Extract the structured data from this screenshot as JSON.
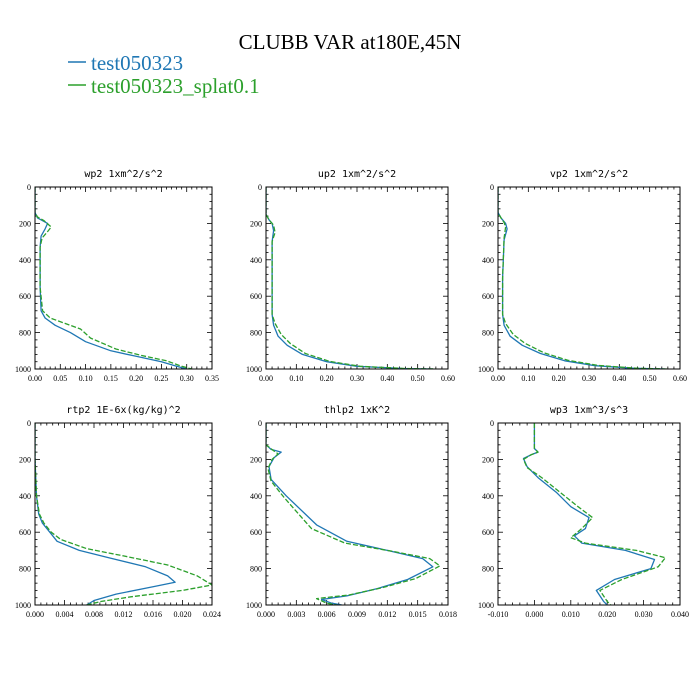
{
  "figure": {
    "title": "CLUBB VAR at180E,45N",
    "legend": [
      {
        "label": "test050323",
        "color": "#1f77b4",
        "dash": false
      },
      {
        "label": "test050323_splat0.1",
        "color": "#2ca02c",
        "dash": true
      }
    ]
  },
  "chart_data": [
    {
      "type": "line",
      "title": "wp2   1xm^2/s^2",
      "xlim": [
        0,
        0.35
      ],
      "ylim": [
        0,
        1000
      ],
      "xticks": [
        "0.00",
        "0.05",
        "0.10",
        "0.15",
        "0.20",
        "0.25",
        "0.30",
        "0.35"
      ],
      "yticks": [
        "0",
        "200",
        "400",
        "600",
        "800",
        "1000"
      ],
      "series": [
        {
          "name": "test050323",
          "color": "#1f77b4",
          "x": [
            0.0,
            0.0,
            0.005,
            0.015,
            0.025,
            0.02,
            0.012,
            0.01,
            0.01,
            0.01,
            0.012,
            0.02,
            0.04,
            0.07,
            0.1,
            0.15,
            0.2,
            0.25,
            0.28,
            0.3
          ],
          "y": [
            0,
            140,
            170,
            185,
            200,
            230,
            270,
            330,
            400,
            550,
            680,
            720,
            760,
            800,
            850,
            900,
            930,
            960,
            985,
            1000
          ]
        },
        {
          "name": "test050323_splat0.1",
          "color": "#2ca02c",
          "x": [
            0.0,
            0.0,
            0.005,
            0.018,
            0.032,
            0.025,
            0.014,
            0.01,
            0.01,
            0.01,
            0.015,
            0.03,
            0.06,
            0.09,
            0.11,
            0.16,
            0.21,
            0.26,
            0.29,
            0.31
          ],
          "y": [
            0,
            140,
            165,
            185,
            220,
            245,
            280,
            330,
            400,
            550,
            680,
            720,
            750,
            780,
            830,
            890,
            925,
            955,
            985,
            1000
          ]
        }
      ]
    },
    {
      "type": "line",
      "title": "up2   1xm^2/s^2",
      "xlim": [
        0,
        0.6
      ],
      "ylim": [
        0,
        1000
      ],
      "xticks": [
        "0.00",
        "0.10",
        "0.20",
        "0.30",
        "0.40",
        "0.50",
        "0.60"
      ],
      "yticks": [
        "0",
        "200",
        "400",
        "600",
        "800",
        "1000"
      ],
      "series": [
        {
          "name": "test050323",
          "color": "#1f77b4",
          "x": [
            0.0,
            0.0,
            0.01,
            0.02,
            0.025,
            0.02,
            0.02,
            0.02,
            0.025,
            0.04,
            0.07,
            0.12,
            0.2,
            0.3,
            0.45,
            0.55
          ],
          "y": [
            0,
            150,
            180,
            200,
            240,
            300,
            500,
            700,
            760,
            820,
            870,
            920,
            960,
            985,
            997,
            1000
          ]
        },
        {
          "name": "test050323_splat0.1",
          "color": "#2ca02c",
          "x": [
            0.0,
            0.0,
            0.01,
            0.025,
            0.03,
            0.02,
            0.02,
            0.02,
            0.03,
            0.05,
            0.08,
            0.13,
            0.21,
            0.31,
            0.46,
            0.56
          ],
          "y": [
            0,
            150,
            180,
            210,
            250,
            300,
            500,
            700,
            750,
            810,
            860,
            915,
            958,
            985,
            997,
            1000
          ]
        }
      ]
    },
    {
      "type": "line",
      "title": "vp2   1xm^2/s^2",
      "xlim": [
        0,
        0.6
      ],
      "ylim": [
        0,
        1000
      ],
      "xticks": [
        "0.00",
        "0.10",
        "0.20",
        "0.30",
        "0.40",
        "0.50",
        "0.60"
      ],
      "yticks": [
        "0",
        "200",
        "400",
        "600",
        "800",
        "1000"
      ],
      "series": [
        {
          "name": "test050323",
          "color": "#1f77b4",
          "x": [
            0.0,
            0.0,
            0.01,
            0.025,
            0.03,
            0.02,
            0.015,
            0.015,
            0.02,
            0.04,
            0.08,
            0.14,
            0.22,
            0.32,
            0.45,
            0.55
          ],
          "y": [
            0,
            140,
            170,
            200,
            230,
            290,
            500,
            700,
            760,
            820,
            870,
            915,
            955,
            982,
            996,
            1000
          ]
        },
        {
          "name": "test050323_splat0.1",
          "color": "#2ca02c",
          "x": [
            0.0,
            0.0,
            0.01,
            0.02,
            0.025,
            0.02,
            0.015,
            0.015,
            0.025,
            0.05,
            0.09,
            0.15,
            0.23,
            0.33,
            0.46,
            0.56
          ],
          "y": [
            0,
            140,
            170,
            195,
            220,
            280,
            500,
            700,
            750,
            810,
            860,
            910,
            952,
            980,
            996,
            1000
          ]
        }
      ]
    },
    {
      "type": "line",
      "title": "rtp2   1E-6x(kg/kg)^2",
      "xlim": [
        0,
        0.024
      ],
      "ylim": [
        0,
        1000
      ],
      "xticks": [
        "0.000",
        "0.004",
        "0.008",
        "0.012",
        "0.016",
        "0.020",
        "0.024"
      ],
      "yticks": [
        "0",
        "200",
        "400",
        "600",
        "800",
        "1000"
      ],
      "series": [
        {
          "name": "test050323",
          "color": "#1f77b4",
          "x": [
            0.0,
            0.0,
            0.0002,
            0.0005,
            0.001,
            0.002,
            0.003,
            0.006,
            0.01,
            0.015,
            0.018,
            0.019,
            0.016,
            0.011,
            0.008,
            0.007
          ],
          "y": [
            0,
            200,
            400,
            500,
            550,
            600,
            650,
            700,
            740,
            790,
            840,
            875,
            900,
            940,
            975,
            1000
          ]
        },
        {
          "name": "test050323_splat0.1",
          "color": "#2ca02c",
          "x": [
            0.0,
            0.0,
            0.0002,
            0.0006,
            0.0012,
            0.0022,
            0.0035,
            0.007,
            0.012,
            0.018,
            0.022,
            0.024,
            0.02,
            0.013,
            0.009,
            0.007
          ],
          "y": [
            0,
            200,
            400,
            500,
            550,
            600,
            640,
            690,
            730,
            780,
            840,
            890,
            920,
            955,
            980,
            1000
          ]
        }
      ]
    },
    {
      "type": "line",
      "title": "thlp2   1xK^2",
      "xlim": [
        0,
        0.018
      ],
      "ylim": [
        0,
        1000
      ],
      "xticks": [
        "0.000",
        "0.003",
        "0.006",
        "0.009",
        "0.012",
        "0.015",
        "0.018"
      ],
      "yticks": [
        "0",
        "200",
        "400",
        "600",
        "800",
        "1000"
      ],
      "series": [
        {
          "name": "test050323",
          "color": "#1f77b4",
          "x": [
            0.0,
            0.0,
            0.0005,
            0.0015,
            0.0008,
            0.0003,
            0.0005,
            0.002,
            0.005,
            0.008,
            0.012,
            0.0155,
            0.0165,
            0.014,
            0.011,
            0.008,
            0.0055,
            0.0065,
            0.0075
          ],
          "y": [
            0,
            120,
            145,
            160,
            190,
            240,
            310,
            400,
            560,
            650,
            700,
            745,
            790,
            860,
            910,
            950,
            970,
            990,
            1000
          ]
        },
        {
          "name": "test050323_splat0.1",
          "color": "#2ca02c",
          "x": [
            0.0,
            0.0,
            0.0007,
            0.0012,
            0.0006,
            0.0002,
            0.0005,
            0.0018,
            0.0045,
            0.0078,
            0.0125,
            0.0162,
            0.0172,
            0.0148,
            0.0115,
            0.0082,
            0.005,
            0.006,
            0.007
          ],
          "y": [
            0,
            120,
            150,
            170,
            200,
            250,
            320,
            410,
            580,
            660,
            705,
            745,
            785,
            855,
            905,
            945,
            965,
            990,
            1000
          ]
        }
      ]
    },
    {
      "type": "line",
      "title": "wp3   1xm^3/s^3",
      "xlim": [
        -0.01,
        0.04
      ],
      "ylim": [
        0,
        1000
      ],
      "xticks": [
        "-0.010",
        "0.000",
        "0.010",
        "0.020",
        "0.030",
        "0.040"
      ],
      "yticks": [
        "0",
        "200",
        "400",
        "600",
        "800",
        "1000"
      ],
      "series": [
        {
          "name": "test050323",
          "color": "#1f77b4",
          "x": [
            0.0,
            0.0,
            0.001,
            -0.001,
            -0.003,
            -0.002,
            0.001,
            0.006,
            0.01,
            0.015,
            0.014,
            0.011,
            0.013,
            0.025,
            0.033,
            0.032,
            0.022,
            0.017,
            0.019,
            0.02
          ],
          "y": [
            0,
            140,
            160,
            175,
            195,
            240,
            300,
            380,
            460,
            520,
            580,
            620,
            660,
            700,
            750,
            800,
            860,
            920,
            980,
            1000
          ]
        },
        {
          "name": "test050323_splat0.1",
          "color": "#2ca02c",
          "x": [
            0.0,
            0.0,
            0.001,
            -0.001,
            -0.003,
            -0.002,
            0.002,
            0.007,
            0.012,
            0.016,
            0.013,
            0.01,
            0.014,
            0.028,
            0.036,
            0.034,
            0.024,
            0.018,
            0.02,
            0.021
          ],
          "y": [
            0,
            140,
            160,
            175,
            200,
            245,
            300,
            380,
            460,
            520,
            580,
            630,
            660,
            700,
            740,
            790,
            860,
            920,
            980,
            1000
          ]
        }
      ]
    }
  ]
}
